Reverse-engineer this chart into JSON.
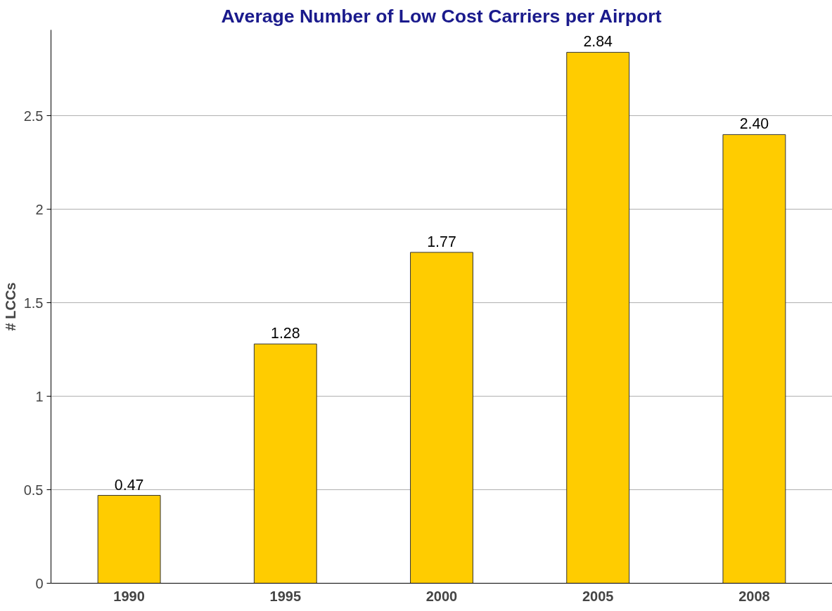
{
  "chart_data": {
    "type": "bar",
    "title": "Average Number of Low Cost Carriers per Airport",
    "ylabel": "# LCCs",
    "categories": [
      "1990",
      "1995",
      "2000",
      "2005",
      "2008"
    ],
    "values": [
      0.47,
      1.28,
      1.77,
      2.84,
      2.4
    ],
    "value_labels": [
      "0.47",
      "1.28",
      "1.77",
      "2.84",
      "2.40"
    ],
    "color": "#ffcc00",
    "ylim": [
      0,
      2.96
    ],
    "yticks": [
      0,
      0.5,
      1,
      1.5,
      2,
      2.5
    ],
    "grid": "y"
  }
}
